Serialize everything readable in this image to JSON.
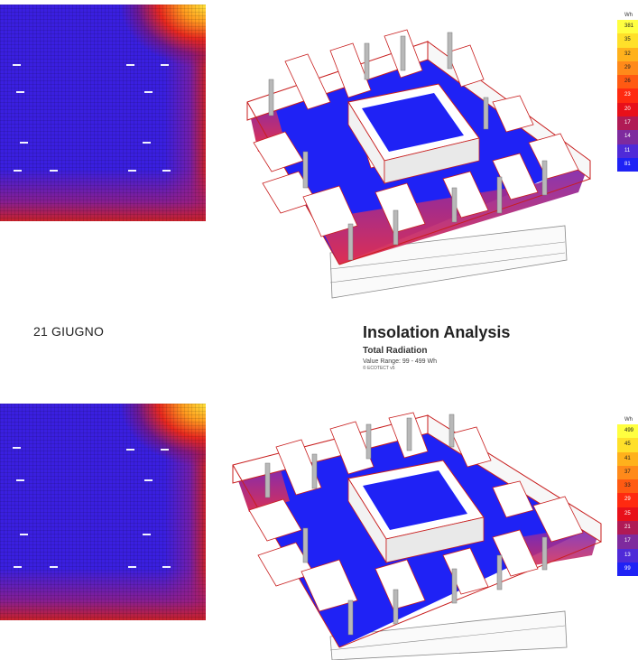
{
  "date_label": "21 GIUGNO",
  "title": "Insolation Analysis",
  "subtitle": "Total Radiation",
  "value_range": "Value Range: 99 - 499 Wh",
  "brand": "© ECOTECT v5",
  "legend_top": {
    "header": "Wh",
    "labels": [
      "381",
      "35",
      "32",
      "29",
      "26",
      "23",
      "20",
      "17",
      "14",
      "11",
      "81"
    ]
  },
  "legend_bottom": {
    "header": "Wh",
    "labels": [
      "499",
      "45",
      "41",
      "37",
      "33",
      "29",
      "25",
      "21",
      "17",
      "13",
      "99"
    ]
  },
  "colors": {
    "scale": [
      "#ffff40",
      "#ffe02a",
      "#ffb11c",
      "#ff8a1a",
      "#ff5a12",
      "#ff2a10",
      "#e8101a",
      "#b01a55",
      "#7e2a9e",
      "#4f2ad8",
      "#1f22f5"
    ]
  }
}
